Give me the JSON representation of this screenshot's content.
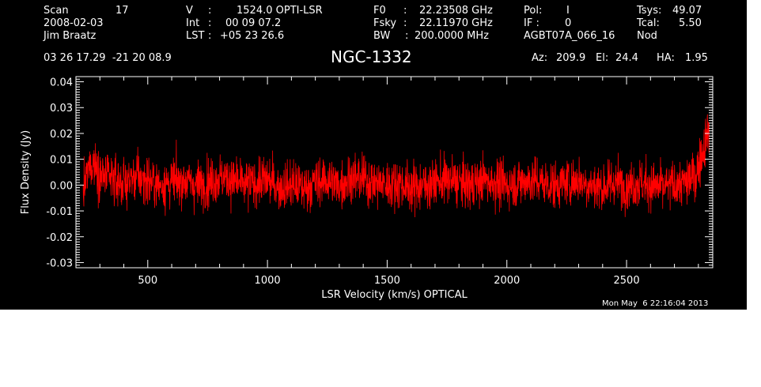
{
  "header": {
    "scan_label": "Scan",
    "scan_value": "17",
    "date": "2008-02-03",
    "observer": "Jim Braatz",
    "v_label": "V",
    "v_value": "1524.0 OPTI-LSR",
    "int_label": "Int",
    "int_value": "00 09 07.2",
    "lst_label": "LST",
    "lst_value": "+05 23 26.6",
    "f0_label": "F0",
    "f0_value": "22.23508 GHz",
    "fsky_label": "Fsky",
    "fsky_value": "22.11970 GHz",
    "bw_label": "BW",
    "bw_value": "200.0000 MHz",
    "pol_label": "Pol:",
    "pol_value": "I",
    "if_label": "IF :",
    "if_value": "0",
    "project": "AGBT07A_066_16",
    "tsys_label": "Tsys:",
    "tsys_value": "49.07",
    "tcal_label": "Tcal:",
    "tcal_value": "5.50",
    "mode": "Nod",
    "coords": "03 26 17.29  -21 20 08.9",
    "source": "NGC-1332",
    "az_label": "Az:",
    "az_value": "209.9",
    "el_label": "El:",
    "el_value": "24.4",
    "ha_label": "HA:",
    "ha_value": "1.95",
    "timestamp": "Mon May  6 22:16:04 2013"
  },
  "colors": {
    "background": "#000000",
    "foreground": "#ffffff",
    "trace": "#ff0000"
  },
  "chart_data": {
    "type": "line",
    "xlabel": "LSR Velocity (km/s) OPTICAL",
    "ylabel": "Flux Density (Jy)",
    "xlim": [
      200,
      2860
    ],
    "ylim": [
      -0.032,
      0.042
    ],
    "xticks": [
      500,
      1000,
      1500,
      2000,
      2500
    ],
    "yticks": [
      -0.03,
      -0.02,
      -0.01,
      0.0,
      0.01,
      0.02,
      0.03,
      0.04
    ],
    "ytick_labels": [
      "-0.03",
      "-0.02",
      "-0.01",
      "0.00",
      "0.01",
      "0.02",
      "0.03",
      "0.04"
    ],
    "series": [
      {
        "color": "#ff0000",
        "x": [
          230,
          250,
          275,
          300,
          350,
          400,
          450,
          500,
          550,
          600,
          650,
          700,
          750,
          800,
          850,
          900,
          950,
          1000,
          1050,
          1100,
          1150,
          1200,
          1250,
          1300,
          1350,
          1400,
          1450,
          1500,
          1550,
          1600,
          1650,
          1700,
          1750,
          1800,
          1850,
          1900,
          1950,
          2000,
          2050,
          2100,
          2150,
          2200,
          2250,
          2300,
          2350,
          2400,
          2450,
          2500,
          2550,
          2600,
          2650,
          2700,
          2750,
          2790,
          2810,
          2830,
          2845
        ],
        "center": [
          -0.004,
          0.006,
          0.009,
          0.004,
          0.002,
          0.001,
          0.003,
          0.002,
          0.0,
          0.001,
          0.002,
          0.0,
          0.001,
          0.003,
          0.002,
          0.0,
          0.001,
          0.002,
          -0.001,
          0.0,
          -0.001,
          0.001,
          0.002,
          0.0,
          0.003,
          0.002,
          0.001,
          0.0,
          0.001,
          -0.001,
          0.0,
          0.001,
          0.002,
          0.001,
          0.0,
          0.002,
          0.001,
          0.0,
          0.001,
          0.002,
          0.001,
          0.0,
          0.001,
          0.002,
          0.0,
          -0.001,
          0.001,
          0.0,
          0.001,
          0.0,
          -0.001,
          0.0,
          0.001,
          0.004,
          0.01,
          0.018,
          0.022
        ],
        "noise_rms": 0.0065
      }
    ]
  }
}
